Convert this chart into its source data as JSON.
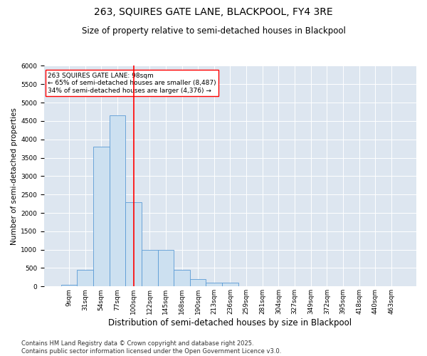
{
  "title1": "263, SQUIRES GATE LANE, BLACKPOOL, FY4 3RE",
  "title2": "Size of property relative to semi-detached houses in Blackpool",
  "xlabel": "Distribution of semi-detached houses by size in Blackpool",
  "ylabel": "Number of semi-detached properties",
  "bins": [
    "9sqm",
    "31sqm",
    "54sqm",
    "77sqm",
    "100sqm",
    "122sqm",
    "145sqm",
    "168sqm",
    "190sqm",
    "213sqm",
    "236sqm",
    "259sqm",
    "281sqm",
    "304sqm",
    "327sqm",
    "349sqm",
    "372sqm",
    "395sqm",
    "418sqm",
    "440sqm",
    "463sqm"
  ],
  "values": [
    50,
    450,
    3800,
    4650,
    2300,
    1000,
    1000,
    450,
    200,
    100,
    100,
    0,
    0,
    0,
    0,
    0,
    0,
    0,
    0,
    0,
    0
  ],
  "bar_color": "#cce0f0",
  "bar_edge_color": "#5b9bd5",
  "vline_bin_index": 4,
  "vline_color": "red",
  "annotation_text": "263 SQUIRES GATE LANE: 98sqm\n← 65% of semi-detached houses are smaller (8,487)\n34% of semi-detached houses are larger (4,376) →",
  "annotation_box_color": "white",
  "annotation_box_edge": "red",
  "ylim": [
    0,
    6000
  ],
  "yticks": [
    0,
    500,
    1000,
    1500,
    2000,
    2500,
    3000,
    3500,
    4000,
    4500,
    5000,
    5500,
    6000
  ],
  "background_color": "#dde6f0",
  "footer": "Contains HM Land Registry data © Crown copyright and database right 2025.\nContains public sector information licensed under the Open Government Licence v3.0.",
  "title1_fontsize": 10,
  "title2_fontsize": 8.5,
  "xlabel_fontsize": 8.5,
  "ylabel_fontsize": 7.5,
  "tick_fontsize": 6.5,
  "annotation_fontsize": 6.5,
  "footer_fontsize": 6.0
}
